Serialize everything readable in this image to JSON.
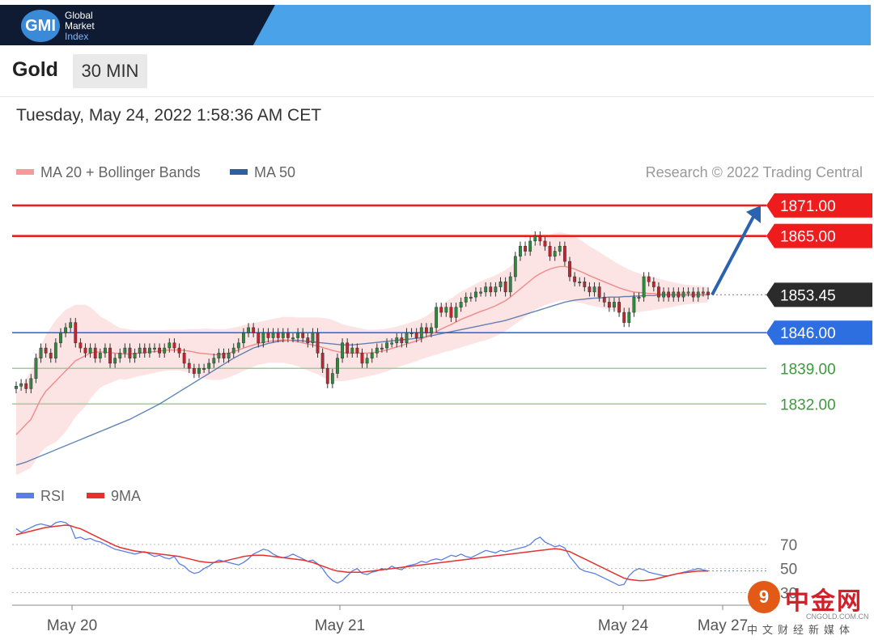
{
  "header": {
    "logo_abbr": "GMI",
    "logo_lines": [
      "Global",
      "Market",
      "Index"
    ]
  },
  "instrument": {
    "name": "Gold",
    "timeframe": "30 MIN"
  },
  "timestamp": "Tuesday, May 24, 2022 1:58:36 AM CET",
  "legend": {
    "ma20": "MA 20 + Bollinger Bands",
    "ma50": "MA 50",
    "credit": "Research © 2022 Trading Central",
    "colors": {
      "ma20": "#f08a8a",
      "ma50": "#2f5f9e",
      "band": "#fde4e4"
    }
  },
  "rsi_legend": {
    "rsi": "RSI",
    "ma9": "9MA",
    "colors": {
      "rsi": "#5b7fe0",
      "ma9": "#e83030"
    }
  },
  "chart_data": [
    {
      "type": "candlestick",
      "x_ticks": [
        "May 20",
        "May 21",
        "May 24",
        "May 27"
      ],
      "ylim": [
        1816,
        1874
      ],
      "levels": [
        {
          "value": 1871.0,
          "label": "1871.00",
          "kind": "resistance",
          "color": "#ee1c1c"
        },
        {
          "value": 1865.0,
          "label": "1865.00",
          "kind": "resistance",
          "color": "#ee1c1c"
        },
        {
          "value": 1853.45,
          "label": "1853.45",
          "kind": "last_price",
          "color": "#2b2b2b"
        },
        {
          "value": 1846.0,
          "label": "1846.00",
          "kind": "pivot",
          "color": "#2d6fe0"
        },
        {
          "value": 1839.0,
          "label": "1839.00",
          "kind": "support",
          "color": "#3c9a3c"
        },
        {
          "value": 1832.0,
          "label": "1832.00",
          "kind": "support",
          "color": "#3c9a3c"
        }
      ],
      "close": [
        1835.5,
        1836,
        1835,
        1837,
        1841,
        1843,
        1842,
        1841,
        1844,
        1846,
        1847,
        1848,
        1844,
        1843,
        1842,
        1843,
        1841,
        1842,
        1843,
        1840,
        1841,
        1842,
        1843,
        1841,
        1842,
        1843,
        1842,
        1843,
        1843,
        1842,
        1843,
        1844,
        1843,
        1842,
        1840,
        1839,
        1838,
        1839,
        1839,
        1840,
        1841,
        1842,
        1841,
        1842,
        1843,
        1844,
        1846,
        1847,
        1846,
        1844,
        1846,
        1845,
        1846,
        1845,
        1846,
        1845,
        1845,
        1846,
        1845,
        1844,
        1846,
        1842,
        1839,
        1836,
        1838,
        1841,
        1844,
        1842,
        1843,
        1842,
        1840,
        1841,
        1842,
        1843,
        1843,
        1844,
        1844,
        1845,
        1844,
        1846,
        1846,
        1845,
        1847,
        1846,
        1847,
        1851,
        1850,
        1851,
        1849,
        1851,
        1852,
        1853,
        1853,
        1854,
        1854,
        1855,
        1854,
        1855,
        1856,
        1854,
        1857,
        1861,
        1863,
        1862,
        1864,
        1865,
        1864,
        1863,
        1861,
        1862,
        1863,
        1860,
        1857,
        1856,
        1856,
        1855,
        1854,
        1855,
        1853,
        1852,
        1851,
        1852,
        1850,
        1848,
        1850,
        1853,
        1853,
        1857,
        1856,
        1855,
        1853,
        1854,
        1853,
        1854,
        1853,
        1854,
        1854,
        1853,
        1854,
        1854,
        1853.45
      ],
      "series": [
        {
          "name": "MA 20",
          "values": [
            1826,
            1827,
            1828,
            1829,
            1831,
            1833,
            1834.5,
            1835.5,
            1836.5,
            1837.5,
            1838.5,
            1839.5,
            1840.5,
            1841,
            1841.5,
            1842,
            1842.2,
            1842.2,
            1842.2,
            1842.1,
            1842,
            1841.9,
            1841.8,
            1841.8,
            1841.9,
            1842,
            1842.1,
            1842.2,
            1842.3,
            1842.4,
            1842.5,
            1842.6,
            1842.6,
            1842.6,
            1842.5,
            1842.4,
            1842.2,
            1842,
            1841.9,
            1841.8,
            1841.7,
            1841.7,
            1841.8,
            1842,
            1842.3,
            1842.6,
            1843,
            1843.3,
            1843.6,
            1843.9,
            1844.1,
            1844.3,
            1844.4,
            1844.5,
            1844.6,
            1844.5,
            1844.4,
            1844.2,
            1844,
            1843.8,
            1843.6,
            1843.4,
            1843.1,
            1842.8,
            1842.5,
            1842.3,
            1842.1,
            1842,
            1842,
            1842,
            1842,
            1842,
            1842.1,
            1842.2,
            1842.4,
            1842.6,
            1842.9,
            1843.2,
            1843.5,
            1843.8,
            1844.1,
            1844.4,
            1844.8,
            1845.2,
            1845.7,
            1846.2,
            1846.7,
            1847.2,
            1847.6,
            1848.1,
            1848.6,
            1849,
            1849.4,
            1849.8,
            1850.2,
            1850.5,
            1850.9,
            1851.3,
            1851.8,
            1852.3,
            1853,
            1853.8,
            1854.6,
            1855.4,
            1856.2,
            1857,
            1857.6,
            1858.1,
            1858.5,
            1858.8,
            1859,
            1859,
            1858.8,
            1858.5,
            1858.1,
            1857.7,
            1857.2,
            1856.8,
            1856.4,
            1856,
            1855.6,
            1855.2,
            1854.8,
            1854.5,
            1854.2,
            1854,
            1853.9,
            1853.8,
            1853.7,
            1853.7,
            1853.6,
            1853.6,
            1853.5,
            1853.5,
            1853.5,
            1853.5,
            1853.5,
            1853.5,
            1853.5,
            1853.5,
            1853.5
          ]
        },
        {
          "name": "MA 50",
          "values": [
            1820,
            1820.3,
            1820.6,
            1821,
            1821.4,
            1821.8,
            1822.2,
            1822.6,
            1823,
            1823.4,
            1823.8,
            1824.2,
            1824.6,
            1825,
            1825.4,
            1825.8,
            1826.2,
            1826.6,
            1827,
            1827.4,
            1827.8,
            1828.2,
            1828.6,
            1829,
            1829.5,
            1830,
            1830.5,
            1831,
            1831.5,
            1832,
            1832.6,
            1833.2,
            1833.8,
            1834.4,
            1835,
            1835.6,
            1836.2,
            1836.8,
            1837.4,
            1838,
            1838.6,
            1839.2,
            1839.8,
            1840.4,
            1841,
            1841.5,
            1842,
            1842.5,
            1843,
            1843.3,
            1843.6,
            1843.9,
            1844.1,
            1844.3,
            1844.4,
            1844.5,
            1844.5,
            1844.5,
            1844.4,
            1844.3,
            1844.2,
            1844.1,
            1844,
            1843.9,
            1843.8,
            1843.7,
            1843.6,
            1843.6,
            1843.6,
            1843.7,
            1843.8,
            1843.9,
            1844,
            1844.1,
            1844.2,
            1844.3,
            1844.4,
            1844.5,
            1844.6,
            1844.7,
            1844.8,
            1844.9,
            1845,
            1845.2,
            1845.4,
            1845.6,
            1845.8,
            1846,
            1846.2,
            1846.4,
            1846.6,
            1846.8,
            1847,
            1847.2,
            1847.4,
            1847.6,
            1847.8,
            1848,
            1848.2,
            1848.4,
            1848.7,
            1849,
            1849.3,
            1849.6,
            1849.9,
            1850.2,
            1850.5,
            1850.8,
            1851.1,
            1851.4,
            1851.7,
            1852,
            1852.2,
            1852.4,
            1852.5,
            1852.6,
            1852.7,
            1852.8,
            1852.8,
            1852.9,
            1853,
            1853,
            1853,
            1853.1,
            1853.1,
            1853.2,
            1853.2,
            1853.3,
            1853.3,
            1853.3,
            1853.4,
            1853.4,
            1853.4,
            1853.4,
            1853.4,
            1853.4,
            1853.4,
            1853.4,
            1853.4,
            1853.4,
            1853.45
          ]
        }
      ],
      "bollinger_width": [
        8,
        8.5,
        9,
        9.5,
        10,
        10.5,
        11,
        11.5,
        12,
        12,
        12,
        11.5,
        11,
        10.5,
        10,
        9,
        8,
        7,
        6.5,
        6,
        5.5,
        5,
        5,
        4.8,
        4.6,
        4.5,
        4.4,
        4.3,
        4.2,
        4.1,
        4,
        4,
        4,
        4,
        4.1,
        4.3,
        4.5,
        4.7,
        4.9,
        5,
        5,
        5,
        4.9,
        4.8,
        4.7,
        4.6,
        4.5,
        4.4,
        4.3,
        4.2,
        4.2,
        4.2,
        4.3,
        4.4,
        4.5,
        4.6,
        4.7,
        4.8,
        5,
        5.2,
        5.4,
        5.6,
        5.8,
        6,
        6,
        5.8,
        5.6,
        5.4,
        5.2,
        5,
        4.8,
        4.6,
        4.5,
        4.4,
        4.3,
        4.2,
        4.1,
        4,
        4,
        4,
        4,
        4,
        4,
        4.1,
        4.3,
        4.5,
        4.7,
        4.9,
        5.1,
        5.3,
        5.5,
        5.6,
        5.7,
        5.8,
        5.9,
        6,
        6,
        6,
        6,
        6,
        6,
        6.1,
        6.2,
        6.3,
        6.4,
        6.5,
        6.6,
        6.7,
        6.8,
        6.8,
        6.7,
        6.6,
        6.5,
        6.4,
        6.2,
        6,
        5.8,
        5.6,
        5.4,
        5.2,
        5,
        4.8,
        4.6,
        4.4,
        4.2,
        4,
        3.8,
        3.6,
        3.4,
        3.2,
        3,
        2.8,
        2.6,
        2.4,
        2.2,
        2,
        1.9,
        1.8,
        1.7,
        1.6,
        1.5,
        1.4,
        1.3
      ]
    },
    {
      "type": "line",
      "ylim": [
        25,
        92
      ],
      "guides": [
        70,
        50,
        30
      ],
      "guide_labels": [
        "70",
        "50",
        "30"
      ],
      "series": [
        {
          "name": "RSI",
          "values": [
            83,
            80,
            82,
            84,
            86,
            87,
            86,
            85,
            88,
            89,
            88,
            85,
            75,
            76,
            74,
            75,
            73,
            72,
            70,
            68,
            66,
            65,
            64,
            63,
            62,
            63,
            64,
            62,
            60,
            61,
            59,
            58,
            60,
            54,
            52,
            48,
            46,
            47,
            50,
            52,
            55,
            57,
            56,
            55,
            54,
            53,
            55,
            58,
            62,
            64,
            66,
            65,
            62,
            60,
            59,
            60,
            62,
            60,
            58,
            56,
            57,
            54,
            50,
            44,
            40,
            38,
            40,
            44,
            48,
            50,
            46,
            45,
            47,
            48,
            50,
            49,
            52,
            50,
            49,
            52,
            53,
            54,
            56,
            55,
            57,
            58,
            57,
            59,
            61,
            60,
            62,
            60,
            59,
            61,
            63,
            65,
            64,
            63,
            65,
            64,
            65,
            66,
            67,
            68,
            70,
            74,
            76,
            72,
            70,
            68,
            69,
            67,
            60,
            55,
            50,
            48,
            47,
            46,
            44,
            42,
            40,
            38,
            36,
            37,
            44,
            48,
            50,
            49,
            47,
            46,
            45,
            44,
            44,
            45,
            46,
            47,
            48,
            49,
            50,
            49,
            48
          ]
        },
        {
          "name": "9MA",
          "values": [
            78,
            79,
            80,
            81,
            82,
            83,
            84,
            84.5,
            85,
            85.5,
            86,
            85.5,
            84,
            83,
            81,
            79,
            77,
            75,
            73,
            71,
            69,
            67.5,
            66.5,
            65.5,
            64.5,
            64,
            63.5,
            63,
            62.5,
            62,
            61.5,
            61,
            60.5,
            60,
            59,
            58,
            57,
            56,
            55.5,
            55,
            55,
            55.5,
            56,
            57,
            58,
            59,
            60,
            60.5,
            61,
            61,
            61,
            60.5,
            60,
            59.5,
            59,
            58.5,
            58,
            57.5,
            57,
            56,
            55,
            53.5,
            52,
            50.5,
            49,
            48,
            47.5,
            47,
            47,
            47,
            47,
            47.5,
            48,
            48.5,
            49,
            49.5,
            50,
            50.5,
            51,
            51.5,
            52,
            52.5,
            53,
            53.5,
            54,
            54.5,
            55,
            55.5,
            56,
            56.5,
            57,
            57.5,
            58,
            58.5,
            59,
            59.5,
            60,
            60.5,
            61,
            61.5,
            62,
            62.5,
            63,
            63.5,
            64,
            64.5,
            65,
            65.5,
            66,
            66.5,
            66,
            65,
            64,
            62,
            60,
            58,
            56,
            54,
            52,
            50,
            48,
            46,
            44,
            42,
            41,
            40.5,
            40,
            40,
            40.5,
            41,
            42,
            43,
            44,
            45,
            46,
            46.5,
            47,
            47.5,
            48,
            48,
            48
          ]
        }
      ]
    }
  ]
}
